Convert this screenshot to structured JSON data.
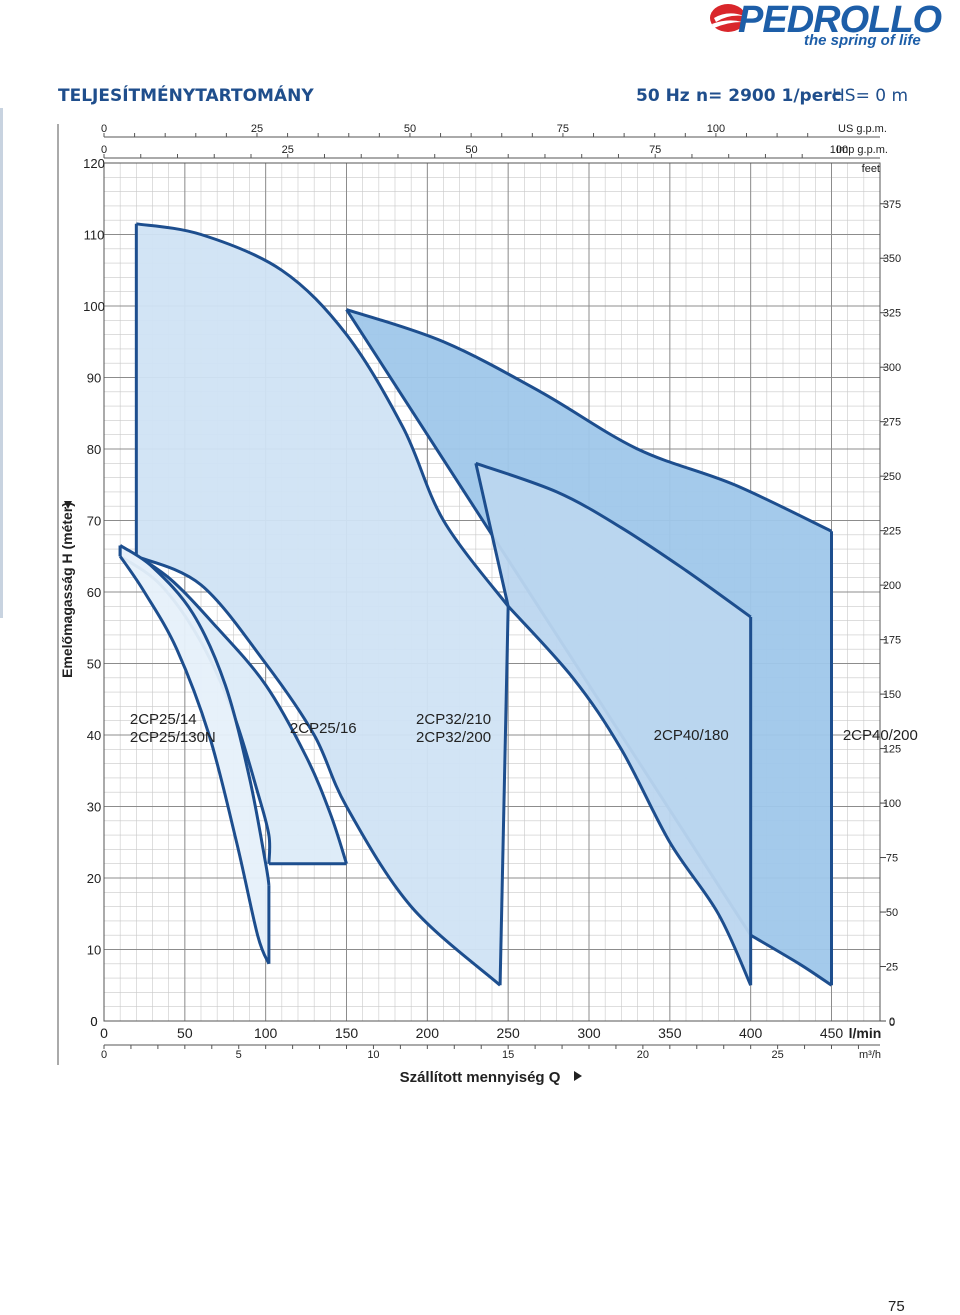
{
  "brand": {
    "name": "PEDROLLO",
    "tagline": "the spring of life",
    "registered_mark": "®"
  },
  "header": {
    "title": "TELJESÍTMÉNYTARTOMÁNY",
    "frequency": "50 Hz",
    "speed": "n= 2900 1/perc",
    "suction": "HS= 0 m"
  },
  "page_number": "75",
  "colors": {
    "title_blue": "#1f4e8c",
    "outline_blue": "#1d4e8e",
    "fill_2CP25_14": "#e6f0fa",
    "fill_2CP25_16": "#dcebf8",
    "fill_2CP32": "#d0e3f4",
    "fill_2CP40_180": "#bcd6ef",
    "fill_2CP40_200": "#9fc7ea",
    "grid": "#9a9a9a"
  },
  "chart_data": {
    "type": "area",
    "title": "",
    "xlabel": "Szállított mennyiség Q",
    "ylabel": "Emelőmagasság H (méter)",
    "xlim": [
      0,
      480
    ],
    "ylim": [
      0,
      120
    ],
    "grid": true,
    "x_primary": {
      "unit": "l/min",
      "ticks": [
        "0",
        "50",
        "100",
        "150",
        "200",
        "250",
        "300",
        "350",
        "400",
        "450"
      ],
      "values": [
        0,
        50,
        100,
        150,
        200,
        250,
        300,
        350,
        400,
        450
      ]
    },
    "x_m3h": {
      "unit": "m³/h",
      "ticks": [
        "0",
        "5",
        "10",
        "15",
        "20",
        "25"
      ],
      "values": [
        0,
        5,
        10,
        15,
        20,
        25
      ]
    },
    "x_us_gpm": {
      "unit": "US g.p.m.",
      "ticks": [
        "0",
        "25",
        "50",
        "75",
        "100"
      ],
      "values": [
        0,
        25,
        50,
        75,
        100
      ]
    },
    "x_imp_gpm": {
      "unit": "Imp g.p.m.",
      "ticks": [
        "0",
        "25",
        "50",
        "75",
        "100"
      ],
      "values": [
        0,
        25,
        50,
        75,
        100
      ]
    },
    "y_left": {
      "unit": "m",
      "ticks": [
        "0",
        "10",
        "20",
        "30",
        "40",
        "50",
        "60",
        "70",
        "80",
        "90",
        "100",
        "110",
        "120"
      ],
      "values": [
        0,
        10,
        20,
        30,
        40,
        50,
        60,
        70,
        80,
        90,
        100,
        110,
        120
      ]
    },
    "y_right": {
      "unit": "feet",
      "ticks": [
        "0",
        "25",
        "50",
        "75",
        "100",
        "125",
        "150",
        "175",
        "200",
        "225",
        "250",
        "275",
        "300",
        "325",
        "350",
        "375"
      ],
      "values": [
        0,
        25,
        50,
        75,
        100,
        125,
        150,
        175,
        200,
        225,
        250,
        275,
        300,
        325,
        350,
        375
      ]
    },
    "series": [
      {
        "name": "2CP25/14\n2CP25/130N",
        "label_lines": [
          "2CP25/14",
          "2CP25/130N"
        ],
        "label_pos": [
          16,
          41
        ],
        "top_curve": [
          [
            10,
            66.5
          ],
          [
            30,
            63.5
          ],
          [
            55,
            57
          ],
          [
            75,
            47
          ],
          [
            90,
            34
          ],
          [
            100,
            22
          ],
          [
            102,
            19
          ]
        ],
        "bottom_curve": [
          [
            10,
            65
          ],
          [
            25,
            60
          ],
          [
            45,
            52
          ],
          [
            65,
            40
          ],
          [
            82,
            25
          ],
          [
            95,
            12
          ],
          [
            102,
            8
          ]
        ],
        "fill_color": "#e6f0fa"
      },
      {
        "name": "2CP25/16",
        "label_lines": [
          "2CP25/16"
        ],
        "label_pos": [
          115,
          41
        ],
        "top_curve": [
          [
            10,
            66.5
          ],
          [
            40,
            62
          ],
          [
            70,
            55
          ],
          [
            100,
            47
          ],
          [
            125,
            37
          ],
          [
            140,
            29
          ],
          [
            150,
            22
          ]
        ],
        "bottom_curve": [
          [
            10,
            65
          ],
          [
            35,
            61
          ],
          [
            60,
            53
          ],
          [
            80,
            43
          ],
          [
            95,
            32
          ],
          [
            102,
            26
          ],
          [
            102,
            22
          ]
        ],
        "fill_color": "#dcebf8"
      },
      {
        "name": "2CP32/210\n2CP32/200",
        "label_lines": [
          "2CP32/210",
          "2CP32/200"
        ],
        "label_pos": [
          193,
          41
        ],
        "top_curve": [
          [
            20,
            111.5
          ],
          [
            60,
            110
          ],
          [
            110,
            105
          ],
          [
            150,
            96
          ],
          [
            185,
            83
          ],
          [
            210,
            70
          ],
          [
            250,
            58
          ]
        ],
        "bottom_curve": [
          [
            20,
            65
          ],
          [
            60,
            61
          ],
          [
            100,
            50
          ],
          [
            130,
            40
          ],
          [
            150,
            30
          ],
          [
            190,
            16
          ],
          [
            245,
            5
          ]
        ],
        "fill_color": "#d0e3f4"
      },
      {
        "name": "2CP40/180",
        "label_lines": [
          "2CP40/180"
        ],
        "label_pos": [
          340,
          40
        ],
        "top_curve": [
          [
            230,
            78
          ],
          [
            280,
            74
          ],
          [
            320,
            69
          ],
          [
            360,
            63
          ],
          [
            400,
            56.5
          ]
        ],
        "bottom_curve": [
          [
            250,
            58
          ],
          [
            290,
            48
          ],
          [
            320,
            38
          ],
          [
            350,
            25
          ],
          [
            380,
            15
          ],
          [
            400,
            5
          ]
        ],
        "fill_color": "#bcd6ef"
      },
      {
        "name": "2CP40/200",
        "label_lines": [
          "2CP40/200"
        ],
        "label_pos": [
          457,
          40
        ],
        "top_curve": [
          [
            150,
            99.5
          ],
          [
            210,
            95
          ],
          [
            270,
            88
          ],
          [
            330,
            80
          ],
          [
            390,
            75
          ],
          [
            450,
            68.5
          ]
        ],
        "bottom_curve": [
          [
            400,
            12
          ],
          [
            430,
            8
          ],
          [
            450,
            5
          ]
        ],
        "fill_color": "#9fc7ea"
      }
    ]
  }
}
